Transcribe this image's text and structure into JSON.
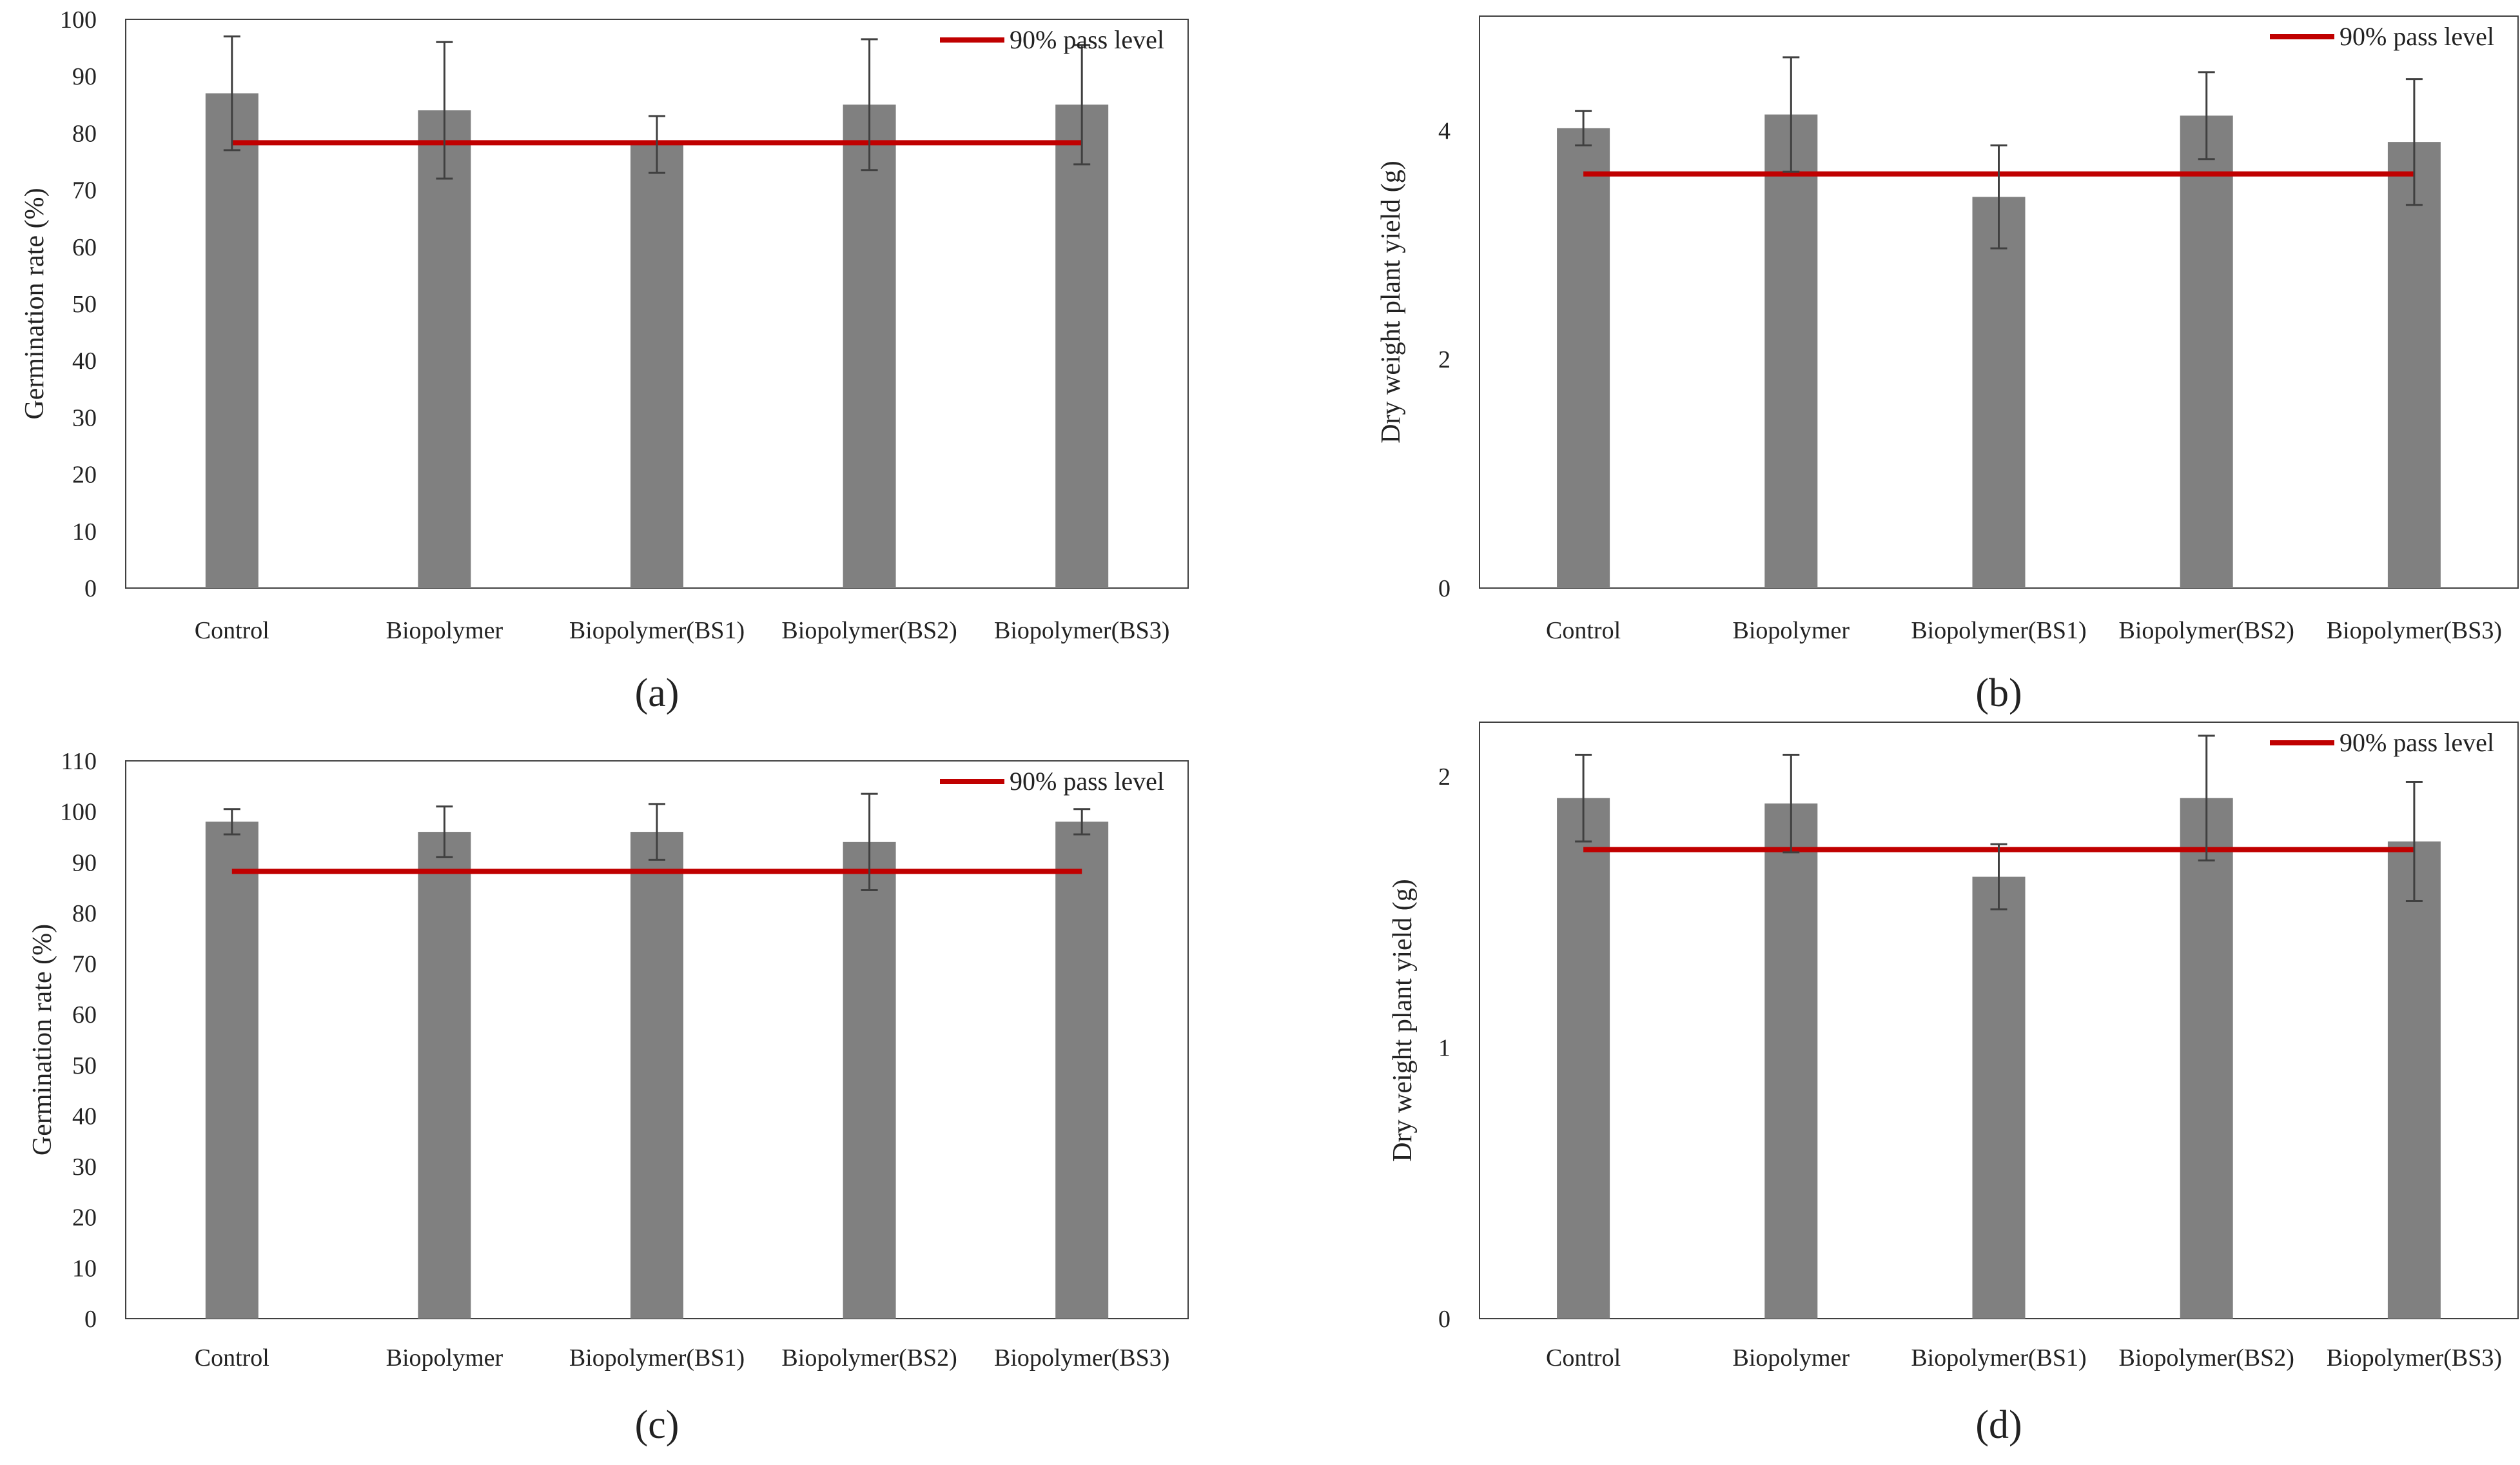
{
  "colors": {
    "bar": "#808080",
    "pass_line": "#c00000",
    "error_bar": "#404040",
    "axis": "#404040",
    "frame": "#404040"
  },
  "chart_data": [
    {
      "id": "a",
      "type": "bar",
      "panel_label": "(a)",
      "title": "",
      "xlabel": "",
      "ylabel": "Germination rate (%)",
      "categories": [
        "Control",
        "Biopolymer",
        "Biopolymer(BS1)",
        "Biopolymer(BS2)",
        "Biopolymer(BS3)"
      ],
      "values": [
        87,
        84,
        78,
        85,
        85
      ],
      "errors": [
        10,
        12,
        5,
        11.5,
        10.5
      ],
      "ylim": [
        0,
        100
      ],
      "yticks": [
        "0",
        "10",
        "20",
        "30",
        "40",
        "50",
        "60",
        "70",
        "80",
        "90",
        "100"
      ],
      "ytick_values": [
        0,
        10,
        20,
        30,
        40,
        50,
        60,
        70,
        80,
        90,
        100
      ],
      "reference_line": {
        "label": "90% pass level",
        "value": 78.3
      },
      "legend": [
        "90% pass level"
      ],
      "legend_position": "top-right"
    },
    {
      "id": "b",
      "type": "bar",
      "panel_label": "(b)",
      "title": "",
      "xlabel": "",
      "ylabel": "Dry weight plant yield (g)",
      "categories": [
        "Control",
        "Biopolymer",
        "Biopolymer(BS1)",
        "Biopolymer(BS2)",
        "Biopolymer(BS3)"
      ],
      "values": [
        4.02,
        4.14,
        3.42,
        4.13,
        3.9
      ],
      "errors": [
        0.15,
        0.5,
        0.45,
        0.38,
        0.55
      ],
      "ylim": [
        0,
        5
      ],
      "yticks": [
        "0",
        "2",
        "4"
      ],
      "ytick_values": [
        0,
        2,
        4
      ],
      "reference_line": {
        "label": "90% pass level",
        "value": 3.62
      },
      "legend": [
        "90% pass level"
      ],
      "legend_position": "top-right"
    },
    {
      "id": "c",
      "type": "bar",
      "panel_label": "(c)",
      "title": "",
      "xlabel": "",
      "ylabel": "Germination rate (%)",
      "categories": [
        "Control",
        "Biopolymer",
        "Biopolymer(BS1)",
        "Biopolymer(BS2)",
        "Biopolymer(BS3)"
      ],
      "values": [
        98,
        96,
        96,
        94,
        98
      ],
      "errors": [
        2.5,
        5,
        5.5,
        9.5,
        2.5
      ],
      "ylim": [
        0,
        110
      ],
      "yticks": [
        "0",
        "10",
        "20",
        "30",
        "40",
        "50",
        "60",
        "70",
        "80",
        "90",
        "100",
        "110"
      ],
      "ytick_values": [
        0,
        10,
        20,
        30,
        40,
        50,
        60,
        70,
        80,
        90,
        100,
        110
      ],
      "reference_line": {
        "label": "90% pass level",
        "value": 88.2
      },
      "legend": [
        "90% pass level"
      ],
      "legend_position": "top-right"
    },
    {
      "id": "d",
      "type": "bar",
      "panel_label": "(d)",
      "title": "",
      "xlabel": "",
      "ylabel": "Dry weight plant yield (g)",
      "categories": [
        "Control",
        "Biopolymer",
        "Biopolymer(BS1)",
        "Biopolymer(BS2)",
        "Biopolymer(BS3)"
      ],
      "values": [
        1.92,
        1.9,
        1.63,
        1.92,
        1.76
      ],
      "errors": [
        0.16,
        0.18,
        0.12,
        0.23,
        0.22
      ],
      "ylim": [
        0,
        2.2
      ],
      "yticks": [
        "0",
        "1",
        "2"
      ],
      "ytick_values": [
        0,
        1,
        2
      ],
      "reference_line": {
        "label": "90% pass level",
        "value": 1.73
      },
      "legend": [
        "90% pass level"
      ],
      "legend_position": "top-right"
    }
  ]
}
